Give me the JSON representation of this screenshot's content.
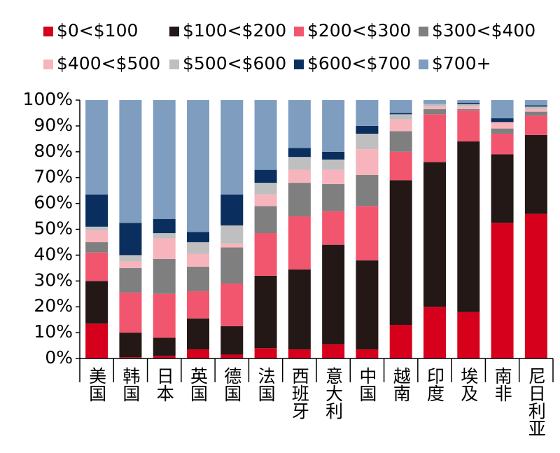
{
  "chart_data": {
    "type": "stacked_bar",
    "categories": [
      "美国",
      "韩国",
      "日本",
      "英国",
      "德国",
      "法国",
      "西班牙",
      "意大利",
      "中国",
      "越南",
      "印度",
      "埃及",
      "南非",
      "尼日利亚"
    ],
    "series": [
      {
        "name": "$0<$100",
        "color": "#d6001c",
        "values": [
          13.5,
          0.5,
          1,
          3.5,
          1.5,
          4,
          3.5,
          5.5,
          3.5,
          13,
          20,
          18,
          52.5,
          56
        ]
      },
      {
        "name": "$100<$200",
        "color": "#231815",
        "values": [
          16.5,
          9.5,
          7,
          12,
          11,
          28,
          31,
          38.5,
          34.5,
          56,
          56,
          66,
          26.5,
          30.5
        ]
      },
      {
        "name": "$200<$300",
        "color": "#f2566f",
        "values": [
          11,
          15.5,
          17,
          10.5,
          16.5,
          16.5,
          20.5,
          13,
          21,
          11,
          18.5,
          12,
          8,
          7.5
        ]
      },
      {
        "name": "$300<$400",
        "color": "#7f7f7f",
        "values": [
          4,
          9.5,
          13.5,
          9.5,
          14,
          10.5,
          13,
          10.5,
          12,
          8,
          2,
          0.5,
          2,
          1.5
        ]
      },
      {
        "name": "$400<$500",
        "color": "#f7b4bc",
        "values": [
          4.5,
          2.5,
          8,
          5,
          1.5,
          4.5,
          5,
          5.5,
          10,
          4.5,
          1,
          1,
          2.5,
          1
        ]
      },
      {
        "name": "$500<$600",
        "color": "#bfbfbf",
        "values": [
          1.5,
          2.5,
          2,
          4.5,
          7,
          4.5,
          5,
          4,
          6,
          2,
          1,
          1,
          0,
          1
        ]
      },
      {
        "name": "$600<$700",
        "color": "#0a2f5f",
        "values": [
          12.5,
          12.5,
          5.5,
          4,
          12,
          5,
          3.5,
          3,
          3,
          0.5,
          0,
          0.5,
          1.5,
          0.5
        ]
      },
      {
        "name": "$700+",
        "color": "#7f9dbf",
        "values": [
          36.5,
          47.5,
          46,
          51,
          36.5,
          27,
          18.5,
          20,
          10,
          5,
          1.5,
          1,
          7,
          2
        ]
      }
    ],
    "ylim": [
      0,
      100
    ],
    "yticks": [
      {
        "value": 0,
        "label": "0%"
      },
      {
        "value": 10,
        "label": "10%"
      },
      {
        "value": 20,
        "label": "20%"
      },
      {
        "value": 30,
        "label": "30%"
      },
      {
        "value": 40,
        "label": "40%"
      },
      {
        "value": 50,
        "label": "50%"
      },
      {
        "value": 60,
        "label": "60%"
      },
      {
        "value": 70,
        "label": "70%"
      },
      {
        "value": 80,
        "label": "80%"
      },
      {
        "value": 90,
        "label": "90%"
      },
      {
        "value": 100,
        "label": "100%"
      }
    ]
  }
}
